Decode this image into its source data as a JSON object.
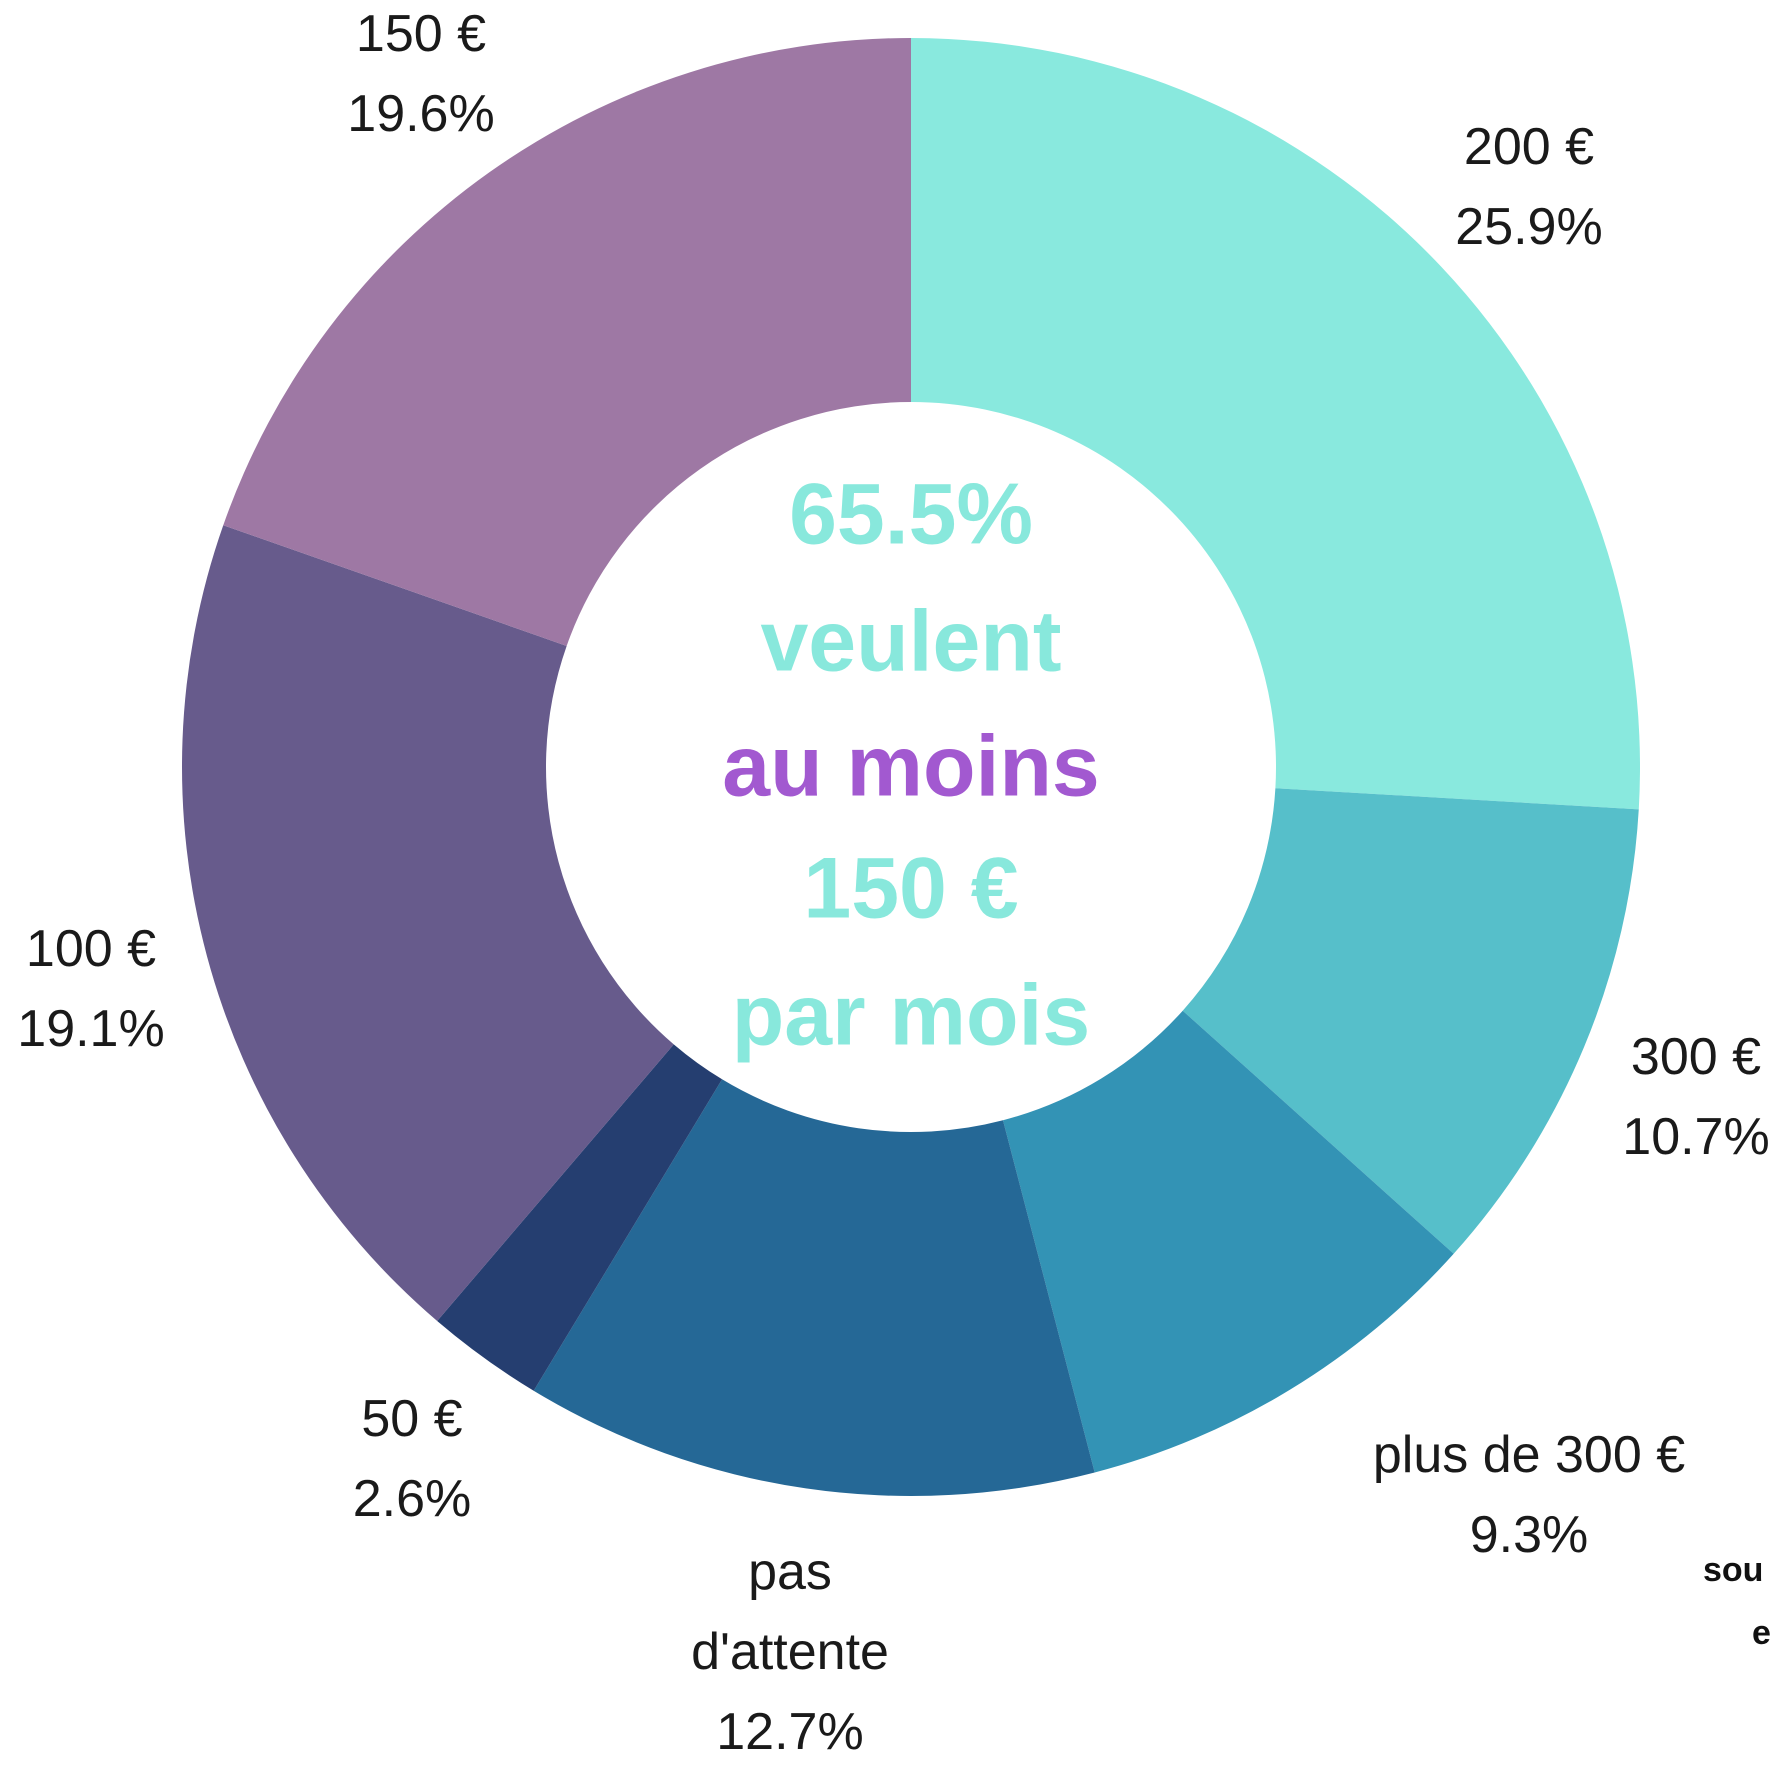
{
  "chart_data": {
    "type": "donut",
    "categories": [
      "200 €",
      "300 €",
      "plus de 300 €",
      "pas d'attente",
      "50 €",
      "100 €",
      "150 €"
    ],
    "values": [
      25.9,
      10.7,
      9.3,
      12.7,
      2.6,
      19.1,
      19.6
    ],
    "value_labels": [
      "25.9%",
      "10.7%",
      "9.3%",
      "12.7%",
      "2.6%",
      "19.1%",
      "19.6%"
    ],
    "colors": [
      "#89e9de",
      "#56bfca",
      "#3393b5",
      "#256896",
      "#253e70",
      "#675b8c",
      "#9e78a4"
    ],
    "center_text": [
      "65.5%",
      "veulent",
      "au moins",
      "150 €",
      "par mois"
    ],
    "center_text_colors": [
      "#88e8dc",
      "#88e8dc",
      "#a259d0",
      "#88e8dc",
      "#88e8dc"
    ],
    "note": [
      "sou",
      "e"
    ]
  }
}
